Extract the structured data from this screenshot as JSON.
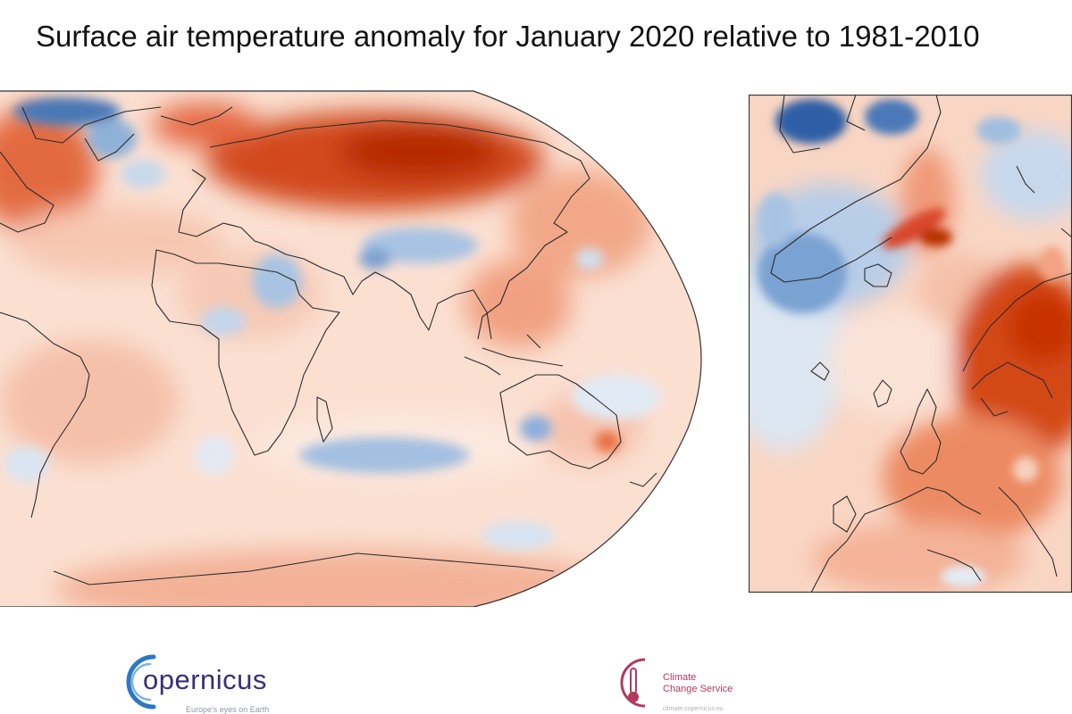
{
  "title": "Surface air temperature anomaly for January 2020 relative to 1981-2010",
  "maps": {
    "world": {
      "region": "global",
      "projection": "Robinson (left half visible)"
    },
    "europe": {
      "region": "Europe",
      "projection": "Lambert conformal (cropped)"
    }
  },
  "color_scale": {
    "warm": "#c83200",
    "warm_light": "#f4b9a2",
    "neutral": "#fbe3d8",
    "cool_light": "#cfdff0",
    "cool": "#2d64aa"
  },
  "logos": {
    "copernicus": {
      "name": "opernicus",
      "tagline": "Europe's eyes on Earth",
      "ring_color": "#2e77c4"
    },
    "c3s": {
      "line1": "Climate",
      "line2": "Change Service",
      "subline": "climate.copernicus.eu",
      "color": "#b23a5e"
    }
  }
}
